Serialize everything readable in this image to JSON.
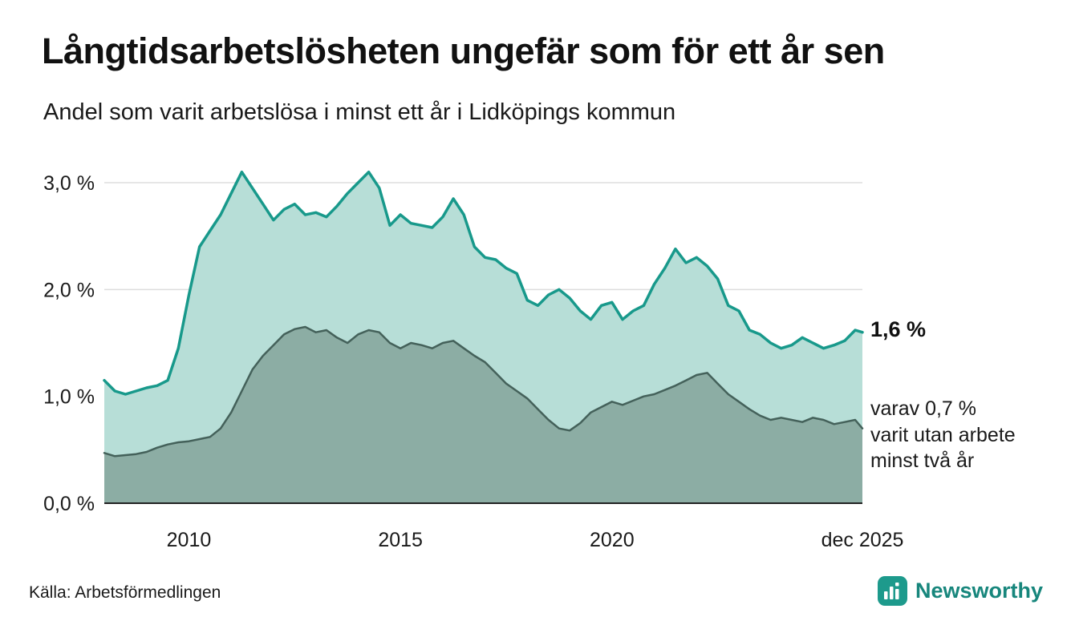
{
  "header": {
    "title": "Långtidsarbetslösheten ungefär som för ett år sen",
    "subtitle": "Andel som varit arbetslösa i minst ett år i Lidköpings kommun"
  },
  "annotations": {
    "total_label": "1,6 %",
    "two_year_label": "varav 0,7 %\nvarit utan arbete\nminst två år"
  },
  "footer": {
    "source": "Källa: Arbetsförmedlingen",
    "brand": "Newsworthy"
  },
  "colors": {
    "area_light": "#b7ded7",
    "stroke_teal": "#18998b",
    "area_dark": "#8cada4",
    "stroke_dark": "#44615a",
    "grid": "#dddddd",
    "axis": "#222222",
    "text": "#1a1a1a",
    "brand_teal": "#1d9a8c"
  },
  "chart_data": {
    "type": "area",
    "title": "Långtidsarbetslösheten ungefär som för ett år sen",
    "subtitle": "Andel som varit arbetslösa i minst ett år i Lidköpings kommun",
    "xlabel": "",
    "ylabel": "",
    "ylim": [
      0,
      3.3
    ],
    "grid": "horizontal",
    "legend_position": "right-annotations",
    "y_ticks": [
      {
        "v": 0,
        "label": "0,0 %"
      },
      {
        "v": 1,
        "label": "1,0 %"
      },
      {
        "v": 2,
        "label": "2,0 %"
      },
      {
        "v": 3,
        "label": "3,0 %"
      }
    ],
    "x_ticks": [
      {
        "x": 2010,
        "label": "2010"
      },
      {
        "x": 2015,
        "label": "2015"
      },
      {
        "x": 2020,
        "label": "2020"
      },
      {
        "x": 2025.92,
        "label": "dec 2025"
      }
    ],
    "x": [
      2008,
      2008.25,
      2008.5,
      2008.75,
      2009,
      2009.25,
      2009.5,
      2009.75,
      2010,
      2010.25,
      2010.5,
      2010.75,
      2011,
      2011.25,
      2011.5,
      2011.75,
      2012,
      2012.25,
      2012.5,
      2012.75,
      2013,
      2013.25,
      2013.5,
      2013.75,
      2014,
      2014.25,
      2014.5,
      2014.75,
      2015,
      2015.25,
      2015.5,
      2015.75,
      2016,
      2016.25,
      2016.5,
      2016.75,
      2017,
      2017.25,
      2017.5,
      2017.75,
      2018,
      2018.25,
      2018.5,
      2018.75,
      2019,
      2019.25,
      2019.5,
      2019.75,
      2020,
      2020.25,
      2020.5,
      2020.75,
      2021,
      2021.25,
      2021.5,
      2021.75,
      2022,
      2022.25,
      2022.5,
      2022.75,
      2023,
      2023.25,
      2023.5,
      2023.75,
      2024,
      2024.25,
      2024.5,
      2024.75,
      2025,
      2025.25,
      2025.5,
      2025.75,
      2025.92
    ],
    "series": [
      {
        "name": "Arbetslösa minst ett år",
        "end_value": 1.6,
        "end_label": "1,6 %",
        "values": [
          1.15,
          1.05,
          1.02,
          1.05,
          1.08,
          1.1,
          1.15,
          1.45,
          1.95,
          2.4,
          2.55,
          2.7,
          2.9,
          3.1,
          2.95,
          2.8,
          2.65,
          2.75,
          2.8,
          2.7,
          2.72,
          2.68,
          2.78,
          2.9,
          3.0,
          3.1,
          2.95,
          2.6,
          2.7,
          2.62,
          2.6,
          2.58,
          2.68,
          2.85,
          2.7,
          2.4,
          2.3,
          2.28,
          2.2,
          2.15,
          1.9,
          1.85,
          1.95,
          2.0,
          1.92,
          1.8,
          1.72,
          1.85,
          1.88,
          1.72,
          1.8,
          1.85,
          2.05,
          2.2,
          2.38,
          2.25,
          2.3,
          2.22,
          2.1,
          1.85,
          1.8,
          1.62,
          1.58,
          1.5,
          1.45,
          1.48,
          1.55,
          1.5,
          1.45,
          1.48,
          1.52,
          1.62,
          1.6
        ]
      },
      {
        "name": "varav utan arbete minst två år",
        "end_value": 0.7,
        "end_label": "varav 0,7 % varit utan arbete minst två år",
        "values": [
          0.47,
          0.44,
          0.45,
          0.46,
          0.48,
          0.52,
          0.55,
          0.57,
          0.58,
          0.6,
          0.62,
          0.7,
          0.85,
          1.05,
          1.25,
          1.38,
          1.48,
          1.58,
          1.63,
          1.65,
          1.6,
          1.62,
          1.55,
          1.5,
          1.58,
          1.62,
          1.6,
          1.5,
          1.45,
          1.5,
          1.48,
          1.45,
          1.5,
          1.52,
          1.45,
          1.38,
          1.32,
          1.22,
          1.12,
          1.05,
          0.98,
          0.88,
          0.78,
          0.7,
          0.68,
          0.75,
          0.85,
          0.9,
          0.95,
          0.92,
          0.96,
          1.0,
          1.02,
          1.06,
          1.1,
          1.15,
          1.2,
          1.22,
          1.12,
          1.02,
          0.95,
          0.88,
          0.82,
          0.78,
          0.8,
          0.78,
          0.76,
          0.8,
          0.78,
          0.74,
          0.76,
          0.78,
          0.7
        ]
      }
    ]
  }
}
